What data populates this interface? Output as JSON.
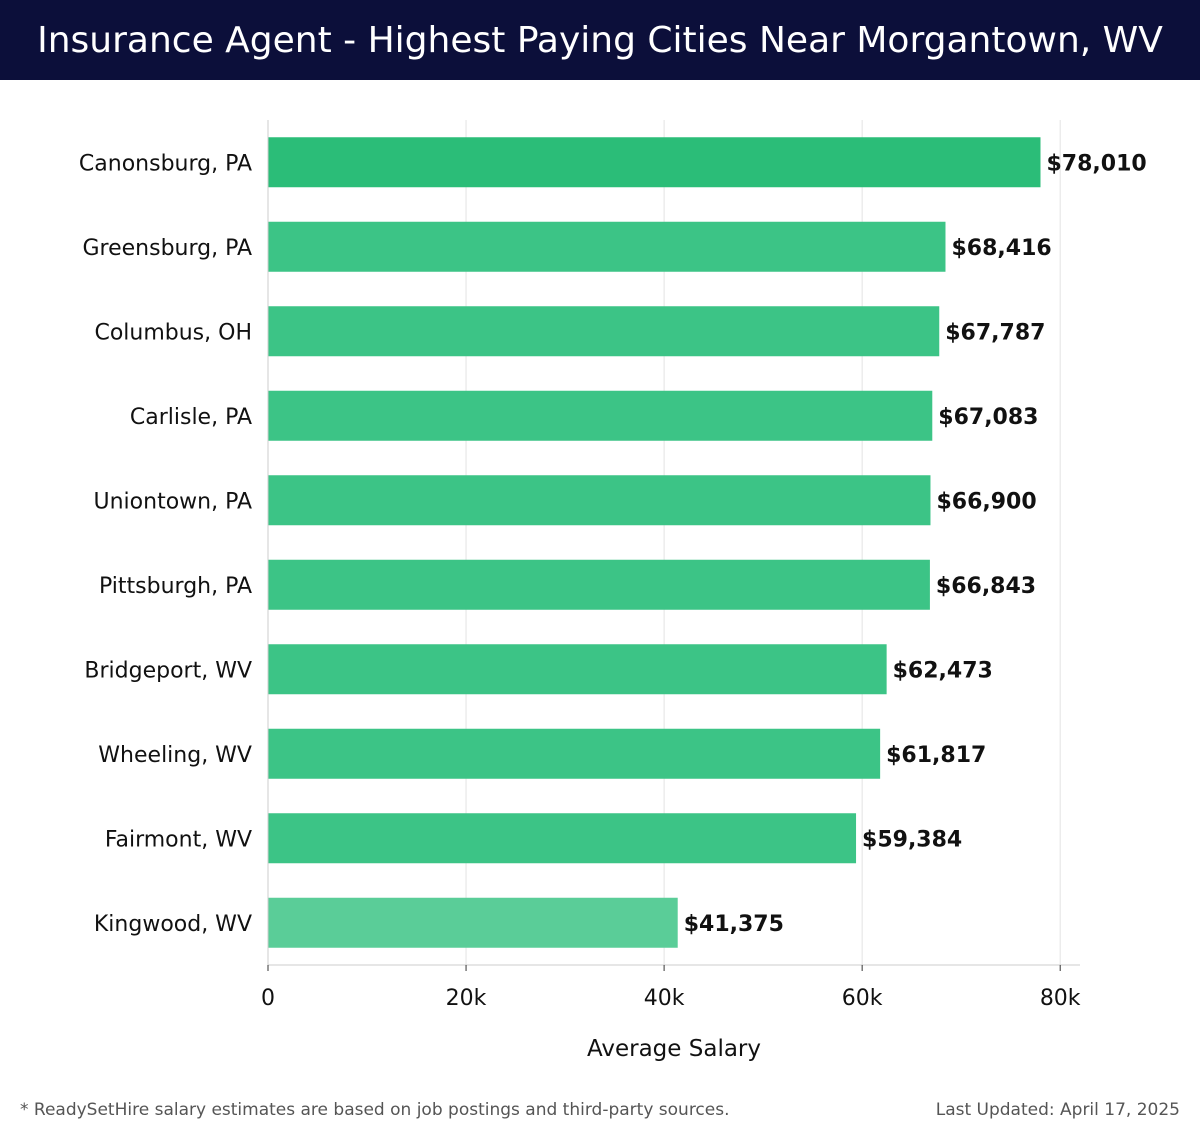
{
  "header": {
    "title": "Insurance Agent - Highest Paying Cities Near Morgantown, WV"
  },
  "chart_data": {
    "type": "bar",
    "orientation": "horizontal",
    "categories": [
      "Canonsburg, PA",
      "Greensburg, PA",
      "Columbus, OH",
      "Carlisle, PA",
      "Uniontown, PA",
      "Pittsburgh, PA",
      "Bridgeport, WV",
      "Wheeling, WV",
      "Fairmont, WV",
      "Kingwood, WV"
    ],
    "values": [
      78010,
      68416,
      67787,
      67083,
      66900,
      66843,
      62473,
      61817,
      59384,
      41375
    ],
    "value_labels": [
      "$78,010",
      "$68,416",
      "$67,787",
      "$67,083",
      "$66,900",
      "$66,843",
      "$62,473",
      "$61,817",
      "$59,384",
      "$41,375"
    ],
    "xlabel": "Average Salary",
    "ylabel": "",
    "xlim": [
      0,
      82000
    ],
    "x_ticks": [
      0,
      20000,
      40000,
      60000,
      80000
    ],
    "x_tick_labels": [
      "0",
      "20k",
      "40k",
      "60k",
      "80k"
    ],
    "grid": true,
    "colors": {
      "bar_top": "#2bbd78",
      "bar_mid": "#3cc486",
      "bar_low": "#5acd98",
      "grid": "#e3e3e3",
      "axis": "#cccccc"
    }
  },
  "footer": {
    "note": "* ReadySetHire salary estimates are based on job postings and third-party sources.",
    "updated": "Last Updated: April 17, 2025"
  }
}
